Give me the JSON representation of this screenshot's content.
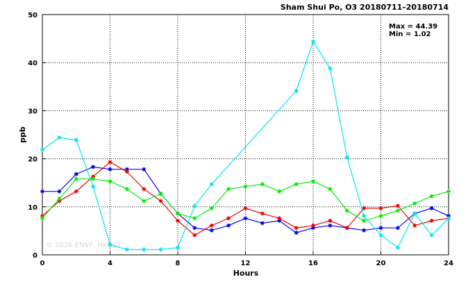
{
  "header": {
    "title": "Sham Shui Po, O3 20180711–20180714",
    "max_text": "Max = 44.39",
    "min_text": "Min =  1.02"
  },
  "watermark": "© 2026  ENVF, HKUST",
  "chart_data": {
    "type": "line",
    "title": "Sham Shui Po, O3 20180711–20180714",
    "xlabel": "Hours",
    "ylabel": "ppb",
    "xlim": [
      0,
      24
    ],
    "ylim": [
      0,
      50
    ],
    "xticks": [
      0,
      4,
      8,
      12,
      16,
      20,
      24
    ],
    "yticks": [
      0,
      10,
      20,
      30,
      40,
      50
    ],
    "grid": true,
    "x": [
      0,
      1,
      2,
      3,
      4,
      5,
      6,
      7,
      8,
      9,
      10,
      11,
      12,
      13,
      14,
      15,
      16,
      17,
      18,
      19,
      20,
      21,
      22,
      23,
      24
    ],
    "series": [
      {
        "color": "#0000ee",
        "values": [
          13.2,
          13.2,
          16.8,
          18.3,
          17.8,
          17.8,
          17.8,
          12.7,
          8.6,
          5.6,
          5.1,
          6.1,
          7.6,
          6.6,
          7.1,
          4.6,
          5.6,
          6.1,
          5.6,
          5.1,
          5.6,
          5.6,
          8.6,
          9.7,
          8.1
        ]
      },
      {
        "color": "#ee0000",
        "values": [
          8.1,
          11.2,
          13.2,
          16.3,
          19.3,
          17.3,
          13.7,
          11.2,
          7.1,
          4.1,
          6.1,
          7.6,
          9.7,
          8.6,
          7.6,
          5.6,
          6.1,
          7.1,
          5.6,
          9.7,
          9.7,
          10.2,
          6.1,
          7.1,
          7.6
        ]
      },
      {
        "color": "#00ee00",
        "values": [
          7.6,
          11.7,
          15.8,
          15.8,
          15.3,
          13.7,
          11.2,
          12.7,
          8.6,
          7.6,
          9.7,
          13.7,
          14.2,
          14.7,
          13.2,
          14.7,
          15.3,
          13.7,
          9.2,
          7.1,
          8.1,
          9.2,
          10.7,
          12.2,
          13.2
        ]
      },
      {
        "color": "#00e5ee",
        "values": [
          21.9,
          24.4,
          23.9,
          14.2,
          2.1,
          1.1,
          1.1,
          1.1,
          1.5,
          10.2,
          14.7,
          null,
          null,
          null,
          null,
          34.1,
          44.39,
          38.8,
          20.3,
          8.1,
          4.1,
          1.5,
          8.6,
          4.1,
          7.6
        ]
      }
    ]
  }
}
